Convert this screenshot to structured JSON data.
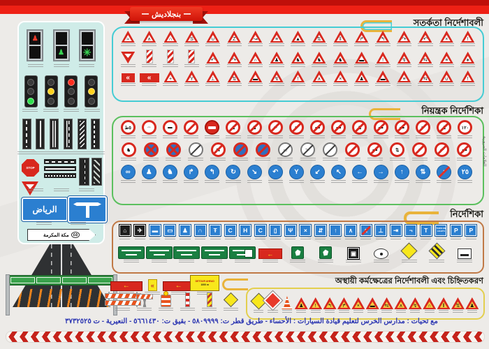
{
  "poster": {
    "ribbon_label": "بنجلاديش",
    "footer_credit": "مع تحيات : مدارس الخرس لتعليم قيادة السيارات : الأحساء - طريق قطر ت: ٥٨٠٩٩٩٩ - بقيق ت: ٥٦٦١٤٣٠ - النعيرية - ت ٣٧٣٢٥٢٥",
    "colors": {
      "top_bar": "#ee2015",
      "sign_red": "#d8281e",
      "sign_blue": "#2b7fd0",
      "sign_green": "#1a7f41",
      "panel_bg": "#cfece8",
      "warning_border": "#45ccd4",
      "regulatory_border": "#5bc05e",
      "guide_border": "#c07946",
      "workzone_border": "#e3cf4e",
      "footer_text": "#2b35b2"
    }
  },
  "left_panel": {
    "stop_label": "STOP",
    "riyadh_sign": "الرياض",
    "makkah_sign": "مكة المكرمة",
    "makkah_distance": "٤٥"
  },
  "sections": {
    "warning": {
      "title": "সতর্কতা নির্দেশাবলী",
      "rows": [
        [
          [
            "tri",
            "≈"
          ],
          [
            "tri",
            "∧"
          ],
          [
            "tri",
            "∩"
          ],
          [
            "tri",
            "S"
          ],
          [
            "tri",
            "∪"
          ],
          [
            "tri",
            "Z"
          ],
          [
            "tri",
            "↝"
          ],
          [
            "tri",
            "≡"
          ],
          [
            "tri",
            "▲"
          ],
          [
            "tri",
            "⇅"
          ],
          [
            "tri",
            "‖"
          ],
          [
            "tri",
            "↱"
          ],
          [
            "tri",
            "↰"
          ],
          [
            "tri",
            "↷"
          ],
          [
            "tri",
            "↶"
          ],
          [
            "tri",
            "×"
          ],
          [
            "tri",
            "!"
          ]
        ],
        [
          [
            "yld",
            ""
          ],
          [
            "plt",
            ""
          ],
          [
            "plt",
            ""
          ],
          [
            "plt",
            ""
          ],
          [
            "tri",
            "↶"
          ],
          [
            "tri",
            "↷"
          ],
          [
            "tri",
            "∩"
          ],
          [
            "tri",
            "♟"
          ],
          [
            "tri",
            "♞"
          ],
          [
            "tri",
            "♞"
          ],
          [
            "tri",
            "♞"
          ],
          [
            "tri",
            "▬"
          ],
          [
            "tri",
            "!"
          ],
          [
            "tri",
            "↯"
          ],
          [
            "tri",
            "⇆"
          ],
          [
            "tri",
            "≡"
          ],
          [
            "tri",
            "∗"
          ]
        ],
        [
          [
            "chv",
            "«"
          ],
          [
            "chv3",
            "«"
          ],
          [
            "tri",
            "+"
          ],
          [
            "tri",
            "Y"
          ],
          [
            "tri",
            "⊥"
          ],
          [
            "tri",
            "⇅"
          ],
          [
            "tri",
            "▬"
          ],
          [
            "tri",
            "↯"
          ],
          [
            "tri",
            "!"
          ],
          [
            "tri",
            "∧"
          ],
          [
            "tri",
            "×"
          ],
          [
            "tri",
            "♟"
          ],
          [
            "tri",
            "▬"
          ],
          [
            "tri",
            "≡"
          ],
          [
            "tri",
            "⇆"
          ],
          [
            "tri",
            "∪"
          ],
          [
            "tri",
            "!"
          ]
        ]
      ]
    },
    "regulatory": {
      "title": "নিয়ন্ত্রক নির্দেশিকা",
      "side_label": "العلامات المرورية",
      "rows": [
        [
          [
            "c",
            "٥ط"
          ],
          [
            "c",
            "⇔"
          ],
          [
            "c",
            "▬"
          ],
          [
            "cs",
            "♪"
          ],
          [
            "ne",
            ""
          ],
          [
            "cs",
            "♟"
          ],
          [
            "cs",
            "♞"
          ],
          [
            "cs",
            "∞"
          ],
          [
            "cs",
            "∞"
          ],
          [
            "cs",
            "▬"
          ],
          [
            "cs",
            "▬"
          ],
          [
            "cs",
            "♞"
          ],
          [
            "cs",
            "▬"
          ],
          [
            "cs",
            "▬"
          ],
          [
            "cs",
            "∞"
          ],
          [
            "cs",
            "♟"
          ],
          [
            "c",
            "١٢٠"
          ]
        ],
        [
          [
            "c",
            "♞"
          ],
          [
            "npx",
            ""
          ],
          [
            "npx",
            ""
          ],
          [
            "ce",
            ""
          ],
          [
            "cs",
            "⇆"
          ],
          [
            "nps",
            ""
          ],
          [
            "nps",
            ""
          ],
          [
            "ec",
            "▭"
          ],
          [
            "ec",
            "٦٠"
          ],
          [
            "ec",
            ""
          ],
          [
            "cs",
            "♪"
          ],
          [
            "cs",
            "▬"
          ],
          [
            "c",
            "⇅"
          ],
          [
            "cs",
            "↱"
          ],
          [
            "cs",
            "↶"
          ],
          [
            "cs",
            "▬"
          ]
        ],
        [
          [
            "b",
            "∞"
          ],
          [
            "b",
            "♟"
          ],
          [
            "b",
            "♞"
          ],
          [
            "b",
            "↱"
          ],
          [
            "b",
            "↰"
          ],
          [
            "b",
            "↻"
          ],
          [
            "b",
            "↘"
          ],
          [
            "b",
            "↶"
          ],
          [
            "b",
            "Y"
          ],
          [
            "b",
            "↙"
          ],
          [
            "b",
            "↖"
          ],
          [
            "b",
            "←"
          ],
          [
            "b",
            "→"
          ],
          [
            "b",
            "↑"
          ],
          [
            "b",
            "⇅"
          ],
          [
            "bs",
            "↑"
          ],
          [
            "b",
            "٢٥"
          ]
        ]
      ]
    },
    "guide": {
      "title": "নির্দেশিকা",
      "turn_on_lights": "TURN ON LIGHTS",
      "rows": [
        [
          [
            "qk",
            "⌂"
          ],
          [
            "qk",
            "✈"
          ],
          [
            "q",
            "▬"
          ],
          [
            "q",
            "▭"
          ],
          [
            "q",
            "♟"
          ],
          [
            "q",
            "∩"
          ],
          [
            "q",
            "Ŧ"
          ],
          [
            "q",
            "C"
          ],
          [
            "q",
            "H"
          ],
          [
            "q",
            "C"
          ],
          [
            "q",
            "▯"
          ],
          [
            "q",
            "Ψ"
          ],
          [
            "q",
            "×"
          ],
          [
            "q",
            "⇵"
          ],
          [
            "q",
            "↑"
          ],
          [
            "q",
            "∧"
          ],
          [
            "qs",
            "∧"
          ],
          [
            "q",
            "⊥"
          ],
          [
            "q",
            "⇥"
          ],
          [
            "q",
            "¬"
          ],
          [
            "q",
            "T"
          ],
          [
            "tol",
            "TURN ON LIGHTS"
          ],
          [
            "q",
            "P"
          ],
          [
            "q",
            "P"
          ]
        ],
        [
          [
            "g2",
            ""
          ],
          [
            "g2",
            ""
          ],
          [
            "g2",
            ""
          ],
          [
            "g2",
            ""
          ],
          [
            "g2w",
            ""
          ],
          [
            "rr",
            "←"
          ],
          [
            "shg",
            ""
          ],
          [
            "shg",
            ""
          ],
          [
            "qk",
            "▣"
          ],
          [
            "ovw",
            ""
          ],
          [
            "dy",
            ""
          ],
          [
            "dst",
            ""
          ],
          [
            "bedw",
            ""
          ]
        ]
      ]
    },
    "workzone": {
      "title": "অস্থায়ী কর্মক্ষেত্রের নির্দেশাবলী এবং চিহ্নিতকরণ",
      "detour_sign": "DETOUR AHEAD|1000 m",
      "row": [
        [
          "dy",
          ""
        ],
        [
          "dr",
          ""
        ],
        [
          "cone",
          ""
        ],
        [
          "tio",
          "♟"
        ],
        [
          "tio",
          "!"
        ],
        [
          "tio",
          "↰"
        ],
        [
          "tio",
          "↱"
        ],
        [
          "tio",
          "×"
        ],
        [
          "tio",
          "▬"
        ],
        [
          "tio",
          "⇆"
        ],
        [
          "tio",
          "∧"
        ],
        [
          "tio",
          "↯"
        ],
        [
          "tio",
          "∩"
        ],
        [
          "tio",
          "‖"
        ],
        [
          "tio",
          "⇅"
        ],
        [
          "tio",
          "♟"
        ]
      ],
      "left_row_a": [
        [
          "rdet",
          "←"
        ],
        [
          "chy",
          "«"
        ],
        [
          "rdet",
          "←"
        ],
        [
          "ydet",
          "DETOUR AHEAD|1000 m"
        ]
      ],
      "left_row_b": [
        [
          "barw",
          ""
        ],
        [
          "afr",
          ""
        ],
        [
          "drum",
          ""
        ],
        [
          "post",
          ""
        ],
        [
          "postst",
          ""
        ],
        [
          "dys",
          ""
        ]
      ]
    }
  }
}
